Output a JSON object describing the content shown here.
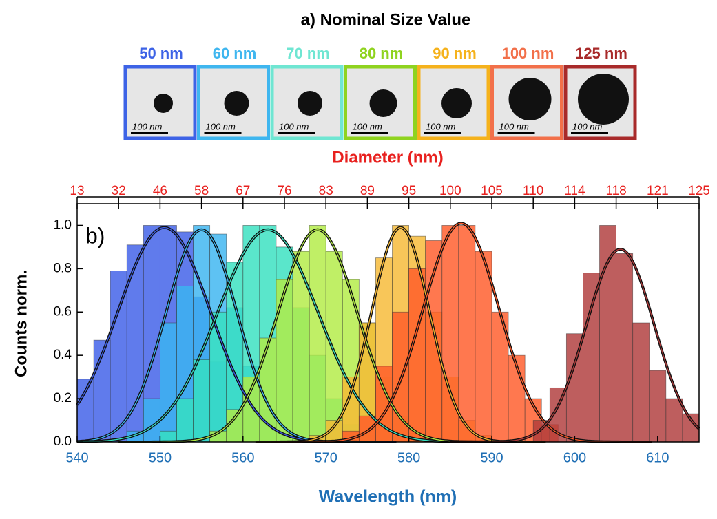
{
  "panel_a": {
    "title": "a) Nominal Size Value",
    "samples": [
      {
        "label": "50 nm",
        "color": "#3d63e6",
        "scale_bar": "100 nm"
      },
      {
        "label": "60 nm",
        "color": "#3fb6ef",
        "scale_bar": "100 nm"
      },
      {
        "label": "70 nm",
        "color": "#6fe6d2",
        "scale_bar": "100 nm"
      },
      {
        "label": "80 nm",
        "color": "#8fd31f",
        "scale_bar": "100 nm"
      },
      {
        "label": "90 nm",
        "color": "#f5b21c",
        "scale_bar": "100 nm"
      },
      {
        "label": "100 nm",
        "color": "#f2704a",
        "scale_bar": "100 nm"
      },
      {
        "label": "125 nm",
        "color": "#a82a2a",
        "scale_bar": "100 nm"
      }
    ]
  },
  "chart_data": {
    "type": "histogram",
    "panel_label": "b)",
    "x_label": "Wavelength (nm)",
    "y_label": "Counts norm.",
    "top_axis": {
      "label": "Diameter (nm)",
      "ticks": [
        13,
        32,
        46,
        58,
        67,
        76,
        83,
        89,
        95,
        100,
        105,
        110,
        114,
        118,
        121,
        125
      ],
      "positions": [
        540,
        545,
        550,
        555,
        560,
        565,
        570,
        575,
        580,
        585,
        590,
        595,
        600,
        605,
        610,
        615
      ]
    },
    "xlim": [
      540,
      615
    ],
    "ylim": [
      0,
      1.1
    ],
    "xticks": [
      540,
      550,
      560,
      570,
      580,
      590,
      600,
      610
    ],
    "yticks": [
      {
        "value": 0,
        "label": "0.0"
      },
      0.2,
      0.4,
      0.6,
      0.8,
      {
        "value": 1,
        "label": "1.0"
      }
    ],
    "series": [
      {
        "name": "50 nm",
        "color": "#3d5ee8",
        "bins": [
          540,
          542,
          544,
          546,
          548,
          550,
          552,
          554,
          556,
          558,
          560
        ],
        "values": [
          0.29,
          0.47,
          0.79,
          0.91,
          1.0,
          1.0,
          0.97,
          0.67,
          0.37,
          0.14
        ],
        "fit": {
          "center": 550.5,
          "height": 0.99,
          "sigma": 5.6
        }
      },
      {
        "name": "60 nm",
        "color": "#3ab4f0",
        "bins": [
          546,
          548,
          550,
          552,
          554,
          556,
          558,
          560,
          562,
          564,
          566
        ],
        "values": [
          0.05,
          0.2,
          0.55,
          0.72,
          1.0,
          0.96,
          0.62,
          0.35,
          0.15,
          0.05
        ],
        "fit": {
          "center": 555,
          "height": 0.98,
          "sigma": 4.3
        }
      },
      {
        "name": "70 nm",
        "color": "#36e0c0",
        "bins": [
          550,
          552,
          554,
          556,
          558,
          560,
          562,
          564,
          566,
          568,
          570,
          572,
          574,
          576,
          578
        ],
        "values": [
          0.05,
          0.2,
          0.38,
          0.6,
          0.83,
          1.0,
          1.0,
          0.9,
          0.62,
          0.4,
          0.2,
          0.08,
          0.03,
          0.01
        ],
        "fit": {
          "center": 563,
          "height": 0.98,
          "sigma": 6.1
        }
      },
      {
        "name": "80 nm",
        "color": "#b2ec44",
        "bins": [
          556,
          558,
          560,
          562,
          564,
          566,
          568,
          570,
          572,
          574,
          576,
          578,
          580,
          582
        ],
        "values": [
          0.05,
          0.15,
          0.3,
          0.48,
          0.75,
          0.88,
          1.0,
          0.88,
          0.75,
          0.55,
          0.3,
          0.12,
          0.04
        ],
        "fit": {
          "center": 569,
          "height": 0.98,
          "sigma": 4.8
        }
      },
      {
        "name": "90 nm",
        "color": "#f7b934",
        "bins": [
          568,
          570,
          572,
          574,
          576,
          578,
          580,
          582,
          584,
          586,
          588,
          590
        ],
        "values": [
          0.03,
          0.1,
          0.3,
          0.55,
          0.85,
          1.0,
          0.95,
          0.6,
          0.3,
          0.1,
          0.03
        ],
        "fit": {
          "center": 579,
          "height": 0.99,
          "sigma": 3.5
        }
      },
      {
        "name": "100 nm",
        "color": "#ff5a28",
        "bins": [
          572,
          574,
          576,
          578,
          580,
          582,
          584,
          586,
          588,
          590,
          592,
          594,
          596,
          598
        ],
        "values": [
          0.05,
          0.12,
          0.35,
          0.6,
          0.8,
          0.93,
          1.0,
          1.0,
          0.88,
          0.6,
          0.4,
          0.2,
          0.08
        ],
        "fit": {
          "center": 586.3,
          "height": 1.01,
          "sigma": 4.6
        }
      },
      {
        "name": "125 nm",
        "color": "#b03a3a",
        "bins": [
          595,
          597,
          599,
          601,
          603,
          605,
          607,
          609,
          611,
          613,
          615
        ],
        "values": [
          0.1,
          0.25,
          0.5,
          0.78,
          1.0,
          0.87,
          0.55,
          0.33,
          0.2,
          0.13
        ],
        "fit": {
          "center": 605.5,
          "height": 0.89,
          "sigma": 4.1
        }
      }
    ]
  }
}
